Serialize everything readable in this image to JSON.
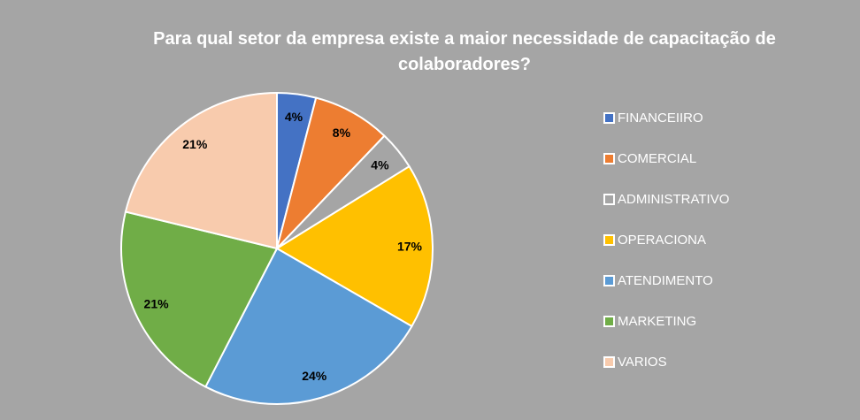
{
  "chart_data": {
    "type": "pie",
    "title": "Para qual setor da empresa existe a maior necessidade de capacitação de colaboradores?",
    "categories": [
      "FINANCEIIRO",
      "COMERCIAL",
      "ADMINISTRATIVO",
      "OPERACIONA",
      "ATENDIMENTO",
      "MARKETING",
      "VARIOS"
    ],
    "values": [
      4,
      8,
      4,
      17,
      24,
      21,
      21
    ],
    "data_labels": [
      "4%",
      "8%",
      "4%",
      "17%",
      "24%",
      "21%",
      "21%"
    ],
    "colors": [
      "#4472c4",
      "#ed7d31",
      "#a5a5a5",
      "#ffc000",
      "#5b9bd5",
      "#70ad47",
      "#f8cbad"
    ],
    "legend_position": "right"
  }
}
